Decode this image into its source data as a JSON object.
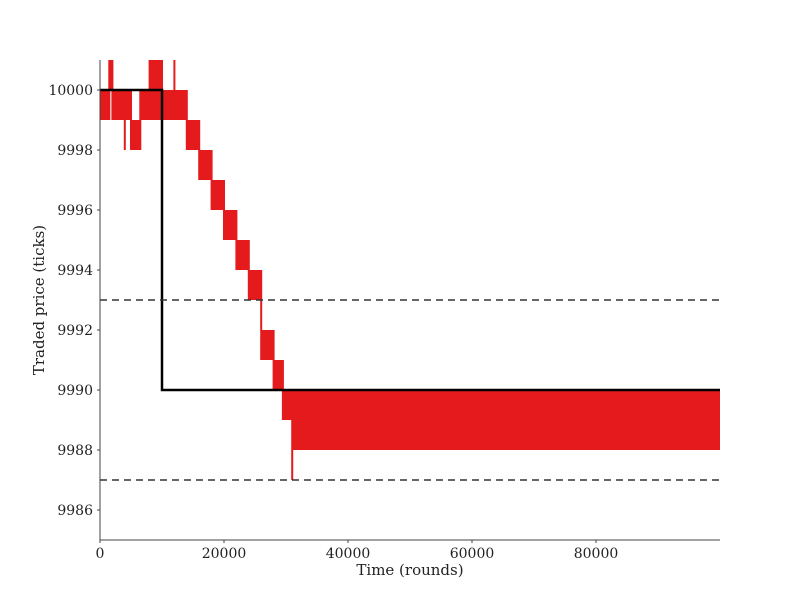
{
  "chart_data": {
    "type": "line",
    "title": "",
    "xlabel": "Time (rounds)",
    "ylabel": "Traded price (ticks)",
    "xlim": [
      0,
      100000
    ],
    "ylim": [
      9985,
      10001
    ],
    "x_ticks": [
      0,
      20000,
      40000,
      60000,
      80000
    ],
    "y_ticks": [
      9986,
      9988,
      9990,
      9992,
      9994,
      9996,
      9998,
      10000
    ],
    "grid": false,
    "legend": "none",
    "colors": {
      "traded_price": "#e41a1c",
      "fundamental": "#000000",
      "bounds": "#333333"
    },
    "series": [
      {
        "role": "traded_price",
        "style": "red band (price oscillating between low and high)",
        "x": [
          0,
          1000,
          1500,
          2000,
          3000,
          4000,
          5000,
          6500,
          8000,
          10000,
          12000,
          14000,
          16000,
          18000,
          20000,
          22000,
          24000,
          26000,
          28000,
          29500,
          31000,
          40000,
          60000,
          80000,
          100000
        ],
        "low": [
          9999,
          9999,
          10000,
          9999,
          9999,
          9999,
          9998,
          9999,
          9999,
          9999,
          9999,
          9998,
          9997,
          9996,
          9995,
          9994,
          9993,
          9991,
          9990,
          9989,
          9988,
          9988,
          9988,
          9988,
          9988
        ],
        "high": [
          10000,
          10000,
          10001,
          10000,
          10000,
          10000,
          9999,
          10000,
          10001,
          10000,
          10000,
          9999,
          9998,
          9997,
          9996,
          9995,
          9994,
          9992,
          9991,
          9990,
          9990,
          9990,
          9990,
          9990,
          9990
        ],
        "spikes": [
          {
            "x": 4000,
            "low": 9998,
            "high": 9999
          },
          {
            "x": 12000,
            "low": 9999,
            "high": 10001
          },
          {
            "x": 31000,
            "low": 9987,
            "high": 9988
          }
        ]
      },
      {
        "role": "fundamental",
        "style": "black step line",
        "x": [
          0,
          10000,
          10000,
          100000
        ],
        "y": [
          10000,
          10000,
          9990,
          9990
        ]
      }
    ],
    "reference_lines": [
      {
        "y": 9993,
        "style": "dashed"
      },
      {
        "y": 9987,
        "style": "dashed"
      }
    ]
  }
}
